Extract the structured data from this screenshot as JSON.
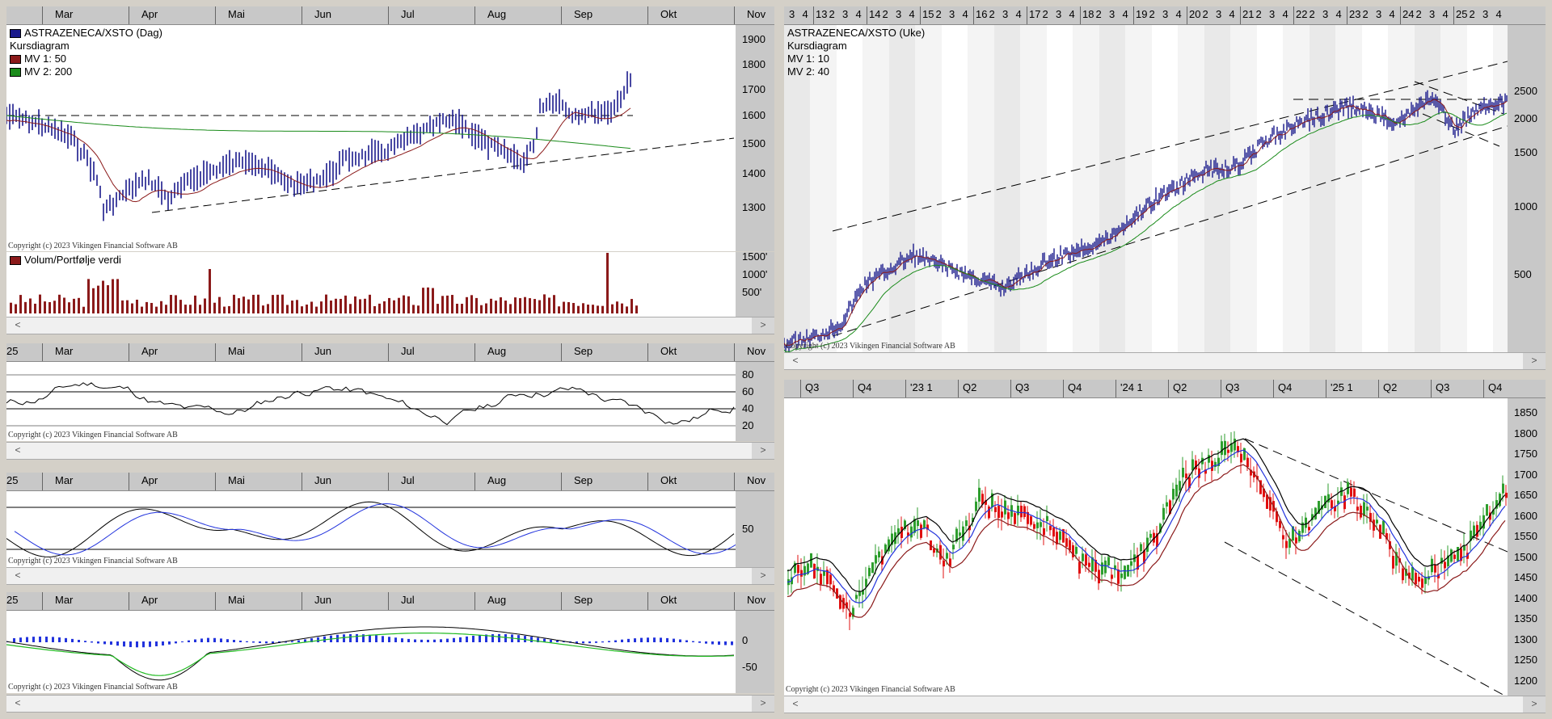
{
  "colors": {
    "price": "#1a1a8c",
    "mv1": "#8b1a1a",
    "mv2": "#1a8b1a",
    "volume": "#8b1a1a",
    "black": "#000000",
    "blue": "#2233dd",
    "green": "#22bb22",
    "up": "#2d9e2d",
    "down": "#e01010"
  },
  "daily": {
    "months": [
      "Mar",
      "Apr",
      "Mai",
      "Jun",
      "Jul",
      "Aug",
      "Sep",
      "Okt",
      "Nov"
    ],
    "legend": {
      "title": "ASTRAZENECA/XSTO (Dag)",
      "type": "Kursdiagram",
      "mv1": "MV 1: 50",
      "mv2": "MV 2: 200"
    },
    "y_ticks": [
      "1900",
      "1800",
      "1700",
      "1600",
      "1500",
      "1400",
      "1300"
    ],
    "copyright": "Copyright (c) 2023 Vikingen Financial Software AB",
    "volume": {
      "label": "Volum/Portfølje verdi",
      "y_ticks": [
        "1500'",
        "1000'",
        "500'"
      ]
    }
  },
  "rsi": {
    "start_label": "25",
    "months": [
      "Mar",
      "Apr",
      "Mai",
      "Jun",
      "Jul",
      "Aug",
      "Sep",
      "Okt",
      "Nov"
    ],
    "y_ticks": [
      "80",
      "60",
      "40",
      "20"
    ],
    "copyright": "Copyright (c) 2023 Vikingen Financial Software AB"
  },
  "stoch": {
    "start_label": "25",
    "months": [
      "Mar",
      "Apr",
      "Mai",
      "Jun",
      "Jul",
      "Aug",
      "Sep",
      "Okt",
      "Nov"
    ],
    "y_ticks": [
      "50"
    ],
    "copyright": "Copyright (c) 2023 Vikingen Financial Software AB"
  },
  "macd": {
    "start_label": "25",
    "months": [
      "Mar",
      "Apr",
      "Mai",
      "Jun",
      "Jul",
      "Aug",
      "Sep",
      "Okt",
      "Nov"
    ],
    "y_ticks": [
      "0",
      "-50"
    ],
    "copyright": "Copyright (c) 2023 Vikingen Financial Software AB"
  },
  "weekly": {
    "year_labels": [
      "3",
      "4",
      "13",
      "2",
      "3",
      "4",
      "14",
      "2",
      "3",
      "4",
      "15",
      "2",
      "3",
      "4",
      "16",
      "2",
      "3",
      "4",
      "17",
      "2",
      "3",
      "4",
      "18",
      "2",
      "3",
      "4",
      "19",
      "2",
      "3",
      "4",
      "20",
      "2",
      "3",
      "4",
      "21",
      "2",
      "3",
      "4",
      "22",
      "2",
      "3",
      "4",
      "23",
      "2",
      "3",
      "4",
      "24",
      "2",
      "3",
      "4",
      "25",
      "2",
      "3",
      "4"
    ],
    "legend": {
      "title": "ASTRAZENECA/XSTO (Uke)",
      "type": "Kursdiagram",
      "mv1": "MV 1: 10",
      "mv2": "MV 2: 40"
    },
    "y_ticks": [
      "2500",
      "2000",
      "1500",
      "1000",
      "500"
    ],
    "copyright": "Copyright (c) 2023 Vikingen Financial Software AB"
  },
  "candle": {
    "quarters": [
      "Q3",
      "Q4",
      "'23 1",
      "Q2",
      "Q3",
      "Q4",
      "'24 1",
      "Q2",
      "Q3",
      "Q4",
      "'25 1",
      "Q2",
      "Q3",
      "Q4"
    ],
    "y_ticks": [
      "1850",
      "1800",
      "1750",
      "1700",
      "1650",
      "1600",
      "1550",
      "1500",
      "1450",
      "1400",
      "1350",
      "1300",
      "1250",
      "1200"
    ],
    "copyright": "Copyright (c) 2023 Vikingen Financial Software AB"
  },
  "scroll": {
    "left": "<",
    "right": ">"
  }
}
